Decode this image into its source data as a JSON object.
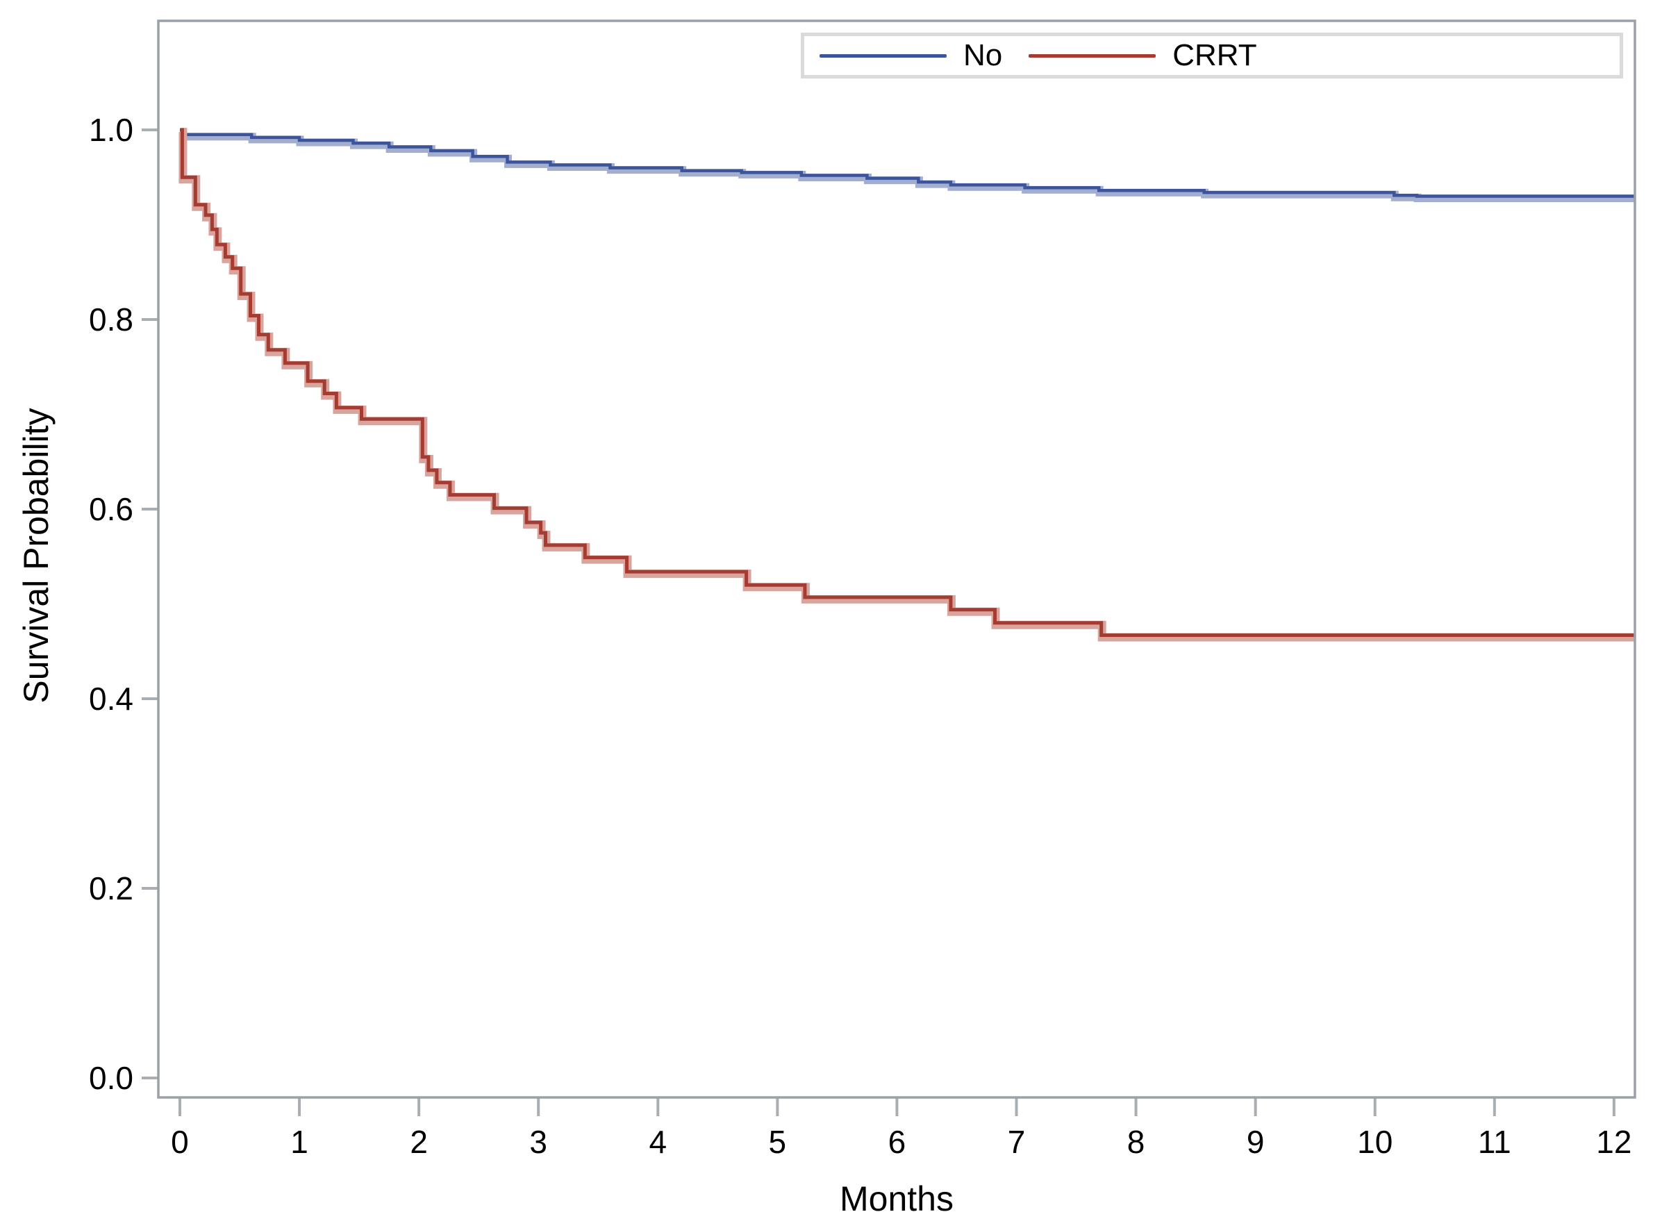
{
  "chart_data": {
    "type": "line",
    "subtype": "kaplan-meier-step",
    "title": "",
    "xlabel": "Months",
    "ylabel": "Survival Probability",
    "xlim": [
      -0.18,
      12.175
    ],
    "ylim": [
      -0.0205,
      1.115
    ],
    "grid": false,
    "legend_position": "top-right-inside",
    "background": "#ffffff",
    "frame_color": "#9aa1a8",
    "tick_color": "#a9aeb5",
    "text_color": "#000000",
    "x_ticks": {
      "values": [
        0,
        1,
        2,
        3,
        4,
        5,
        6,
        7,
        8,
        9,
        10,
        11,
        12
      ],
      "labels": [
        "0",
        "1",
        "2",
        "3",
        "4",
        "5",
        "6",
        "7",
        "8",
        "9",
        "10",
        "11",
        "12"
      ]
    },
    "y_ticks": {
      "values": [
        1.0,
        0.8,
        0.6,
        0.4,
        0.2,
        0.0
      ],
      "labels": [
        "1.0",
        "0.8",
        "0.6",
        "0.4",
        "0.2",
        "0.0"
      ]
    },
    "series": [
      {
        "name": "No",
        "color": "#3c549b",
        "halo_color": "#a3aecf",
        "points": [
          [
            0.0,
            0.995
          ],
          [
            0.6,
            0.992
          ],
          [
            1.0,
            0.989
          ],
          [
            1.45,
            0.986
          ],
          [
            1.75,
            0.982
          ],
          [
            2.1,
            0.978
          ],
          [
            2.45,
            0.972
          ],
          [
            2.74,
            0.966
          ],
          [
            3.1,
            0.963
          ],
          [
            3.6,
            0.96
          ],
          [
            4.2,
            0.957
          ],
          [
            4.7,
            0.955
          ],
          [
            5.2,
            0.952
          ],
          [
            5.75,
            0.949
          ],
          [
            6.18,
            0.945
          ],
          [
            6.45,
            0.942
          ],
          [
            7.07,
            0.939
          ],
          [
            7.69,
            0.936
          ],
          [
            8.57,
            0.934
          ],
          [
            10.16,
            0.931
          ],
          [
            10.35,
            0.93
          ],
          [
            12.175,
            0.93
          ]
        ]
      },
      {
        "name": "CRRT",
        "color": "#a53c32",
        "halo_color": "#d8a49e",
        "points": [
          [
            0.0,
            1.0
          ],
          [
            0.02,
            0.95
          ],
          [
            0.13,
            0.921
          ],
          [
            0.215,
            0.91
          ],
          [
            0.27,
            0.895
          ],
          [
            0.31,
            0.879
          ],
          [
            0.38,
            0.866
          ],
          [
            0.44,
            0.854
          ],
          [
            0.51,
            0.827
          ],
          [
            0.59,
            0.804
          ],
          [
            0.66,
            0.784
          ],
          [
            0.74,
            0.768
          ],
          [
            0.88,
            0.754
          ],
          [
            1.07,
            0.735
          ],
          [
            1.21,
            0.722
          ],
          [
            1.31,
            0.707
          ],
          [
            1.52,
            0.695
          ],
          [
            2.03,
            0.655
          ],
          [
            2.08,
            0.641
          ],
          [
            2.15,
            0.628
          ],
          [
            2.26,
            0.615
          ],
          [
            2.63,
            0.601
          ],
          [
            2.9,
            0.586
          ],
          [
            3.02,
            0.575
          ],
          [
            3.06,
            0.562
          ],
          [
            3.39,
            0.549
          ],
          [
            3.74,
            0.534
          ],
          [
            4.74,
            0.52
          ],
          [
            5.23,
            0.507
          ],
          [
            6.45,
            0.494
          ],
          [
            6.82,
            0.48
          ],
          [
            7.71,
            0.467
          ],
          [
            12.175,
            0.467
          ]
        ]
      }
    ]
  }
}
